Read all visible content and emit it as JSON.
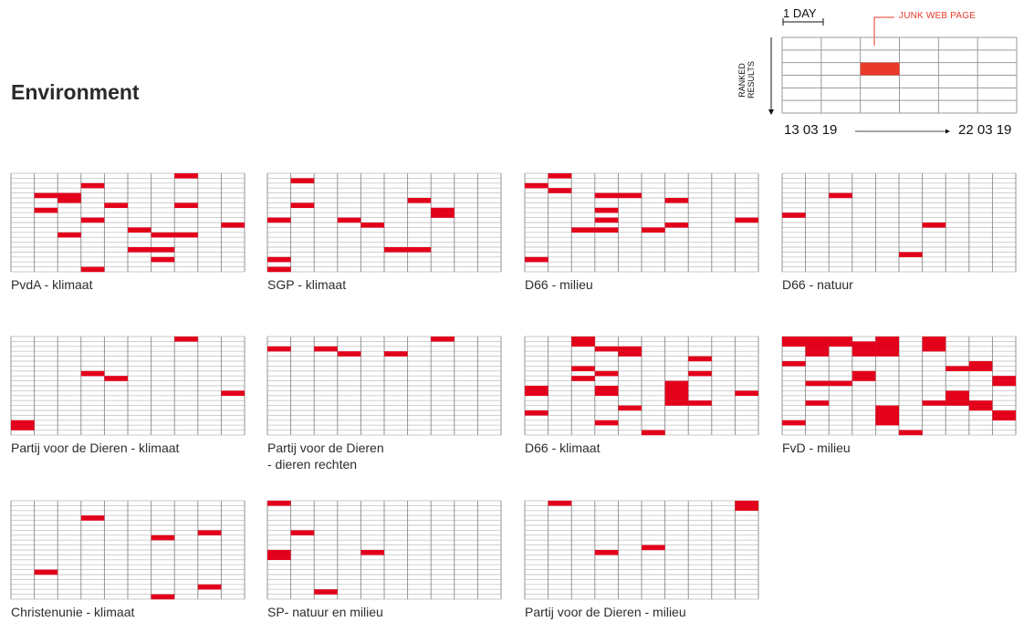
{
  "page": {
    "title": "Environment"
  },
  "legend": {
    "day_label": "1 DAY",
    "junk_label": "JUNK WEB PAGE",
    "axis_label": "RANKED RESULTS",
    "start_date": "13 03 19",
    "end_date": "22 03 19",
    "colors": {
      "junk": "#e8392a",
      "grid": "#9a9a9a"
    }
  },
  "colors": {
    "junk": "#e3001b",
    "grid_line": "#c9c9c9",
    "grid_border": "#666666"
  },
  "chart_data": [
    {
      "type": "heatmap",
      "title": "PvdA - klimaat",
      "days": 10,
      "ranks": 20,
      "dates": [
        "13 03 19",
        "22 03 19"
      ],
      "junk": [
        [
          7,
          0
        ],
        [
          3,
          2
        ],
        [
          1,
          4
        ],
        [
          2,
          4
        ],
        [
          7,
          6
        ],
        [
          2,
          5
        ],
        [
          4,
          6
        ],
        [
          1,
          7
        ],
        [
          3,
          9
        ],
        [
          9,
          10
        ],
        [
          5,
          11
        ],
        [
          6,
          12
        ],
        [
          7,
          12
        ],
        [
          2,
          12
        ],
        [
          6,
          15
        ],
        [
          5,
          15
        ],
        [
          6,
          17
        ],
        [
          3,
          19
        ]
      ]
    },
    {
      "type": "heatmap",
      "title": "SGP - klimaat",
      "days": 10,
      "ranks": 20,
      "dates": [
        "13 03 19",
        "22 03 19"
      ],
      "junk": [
        [
          1,
          1
        ],
        [
          1,
          6
        ],
        [
          6,
          5
        ],
        [
          7,
          7
        ],
        [
          7,
          8
        ],
        [
          0,
          9
        ],
        [
          3,
          9
        ],
        [
          4,
          10
        ],
        [
          5,
          15
        ],
        [
          6,
          15
        ],
        [
          0,
          17
        ],
        [
          0,
          19
        ]
      ]
    },
    {
      "type": "heatmap",
      "title": "D66 - milieu",
      "days": 10,
      "ranks": 20,
      "dates": [
        "13 03 19",
        "22 03 19"
      ],
      "junk": [
        [
          1,
          0
        ],
        [
          0,
          2
        ],
        [
          1,
          3
        ],
        [
          3,
          4
        ],
        [
          4,
          4
        ],
        [
          6,
          5
        ],
        [
          3,
          7
        ],
        [
          3,
          9
        ],
        [
          2,
          11
        ],
        [
          3,
          11
        ],
        [
          5,
          11
        ],
        [
          6,
          10
        ],
        [
          9,
          9
        ],
        [
          0,
          17
        ]
      ]
    },
    {
      "type": "heatmap",
      "title": "D66 - natuur",
      "days": 10,
      "ranks": 20,
      "dates": [
        "13 03 19",
        "22 03 19"
      ],
      "junk": [
        [
          2,
          4
        ],
        [
          0,
          8
        ],
        [
          6,
          10
        ],
        [
          5,
          16
        ]
      ]
    },
    {
      "type": "heatmap",
      "title": "Partij voor de Dieren - klimaat",
      "days": 10,
      "ranks": 20,
      "dates": [
        "13 03 19",
        "22 03 19"
      ],
      "junk": [
        [
          7,
          0
        ],
        [
          3,
          7
        ],
        [
          4,
          8
        ],
        [
          9,
          11
        ],
        [
          0,
          17
        ],
        [
          0,
          18
        ]
      ]
    },
    {
      "type": "heatmap",
      "title": "Partij voor de Dieren\n- dieren rechten",
      "days": 10,
      "ranks": 20,
      "dates": [
        "13 03 19",
        "22 03 19"
      ],
      "junk": [
        [
          7,
          0
        ],
        [
          0,
          2
        ],
        [
          2,
          2
        ],
        [
          3,
          3
        ],
        [
          5,
          3
        ]
      ]
    },
    {
      "type": "heatmap",
      "title": "D66 - klimaat",
      "days": 10,
      "ranks": 20,
      "dates": [
        "13 03 19",
        "22 03 19"
      ],
      "junk": [
        [
          2,
          0
        ],
        [
          2,
          1
        ],
        [
          3,
          2
        ],
        [
          4,
          2
        ],
        [
          4,
          3
        ],
        [
          7,
          4
        ],
        [
          2,
          6
        ],
        [
          3,
          7
        ],
        [
          7,
          7
        ],
        [
          2,
          8
        ],
        [
          6,
          9
        ],
        [
          0,
          10
        ],
        [
          0,
          11
        ],
        [
          3,
          10
        ],
        [
          3,
          11
        ],
        [
          9,
          11
        ],
        [
          6,
          10
        ],
        [
          6,
          11
        ],
        [
          6,
          12
        ],
        [
          6,
          13
        ],
        [
          7,
          13
        ],
        [
          4,
          14
        ],
        [
          0,
          15
        ],
        [
          3,
          17
        ],
        [
          5,
          19
        ]
      ]
    },
    {
      "type": "heatmap",
      "title": "FvD - milieu",
      "days": 10,
      "ranks": 20,
      "dates": [
        "13 03 19",
        "22 03 19"
      ],
      "junk": [
        [
          0,
          0
        ],
        [
          0,
          1
        ],
        [
          1,
          0
        ],
        [
          1,
          1
        ],
        [
          1,
          2
        ],
        [
          1,
          3
        ],
        [
          2,
          0
        ],
        [
          2,
          1
        ],
        [
          3,
          1
        ],
        [
          3,
          2
        ],
        [
          3,
          3
        ],
        [
          4,
          0
        ],
        [
          4,
          1
        ],
        [
          4,
          2
        ],
        [
          4,
          3
        ],
        [
          6,
          0
        ],
        [
          6,
          1
        ],
        [
          6,
          2
        ],
        [
          0,
          5
        ],
        [
          8,
          5
        ],
        [
          8,
          6
        ],
        [
          3,
          7
        ],
        [
          3,
          8
        ],
        [
          7,
          6
        ],
        [
          9,
          8
        ],
        [
          9,
          9
        ],
        [
          1,
          9
        ],
        [
          2,
          9
        ],
        [
          1,
          13
        ],
        [
          6,
          13
        ],
        [
          7,
          11
        ],
        [
          7,
          12
        ],
        [
          7,
          13
        ],
        [
          8,
          13
        ],
        [
          8,
          14
        ],
        [
          4,
          14
        ],
        [
          4,
          15
        ],
        [
          4,
          16
        ],
        [
          4,
          17
        ],
        [
          9,
          15
        ],
        [
          9,
          16
        ],
        [
          0,
          17
        ],
        [
          5,
          19
        ]
      ]
    },
    {
      "type": "heatmap",
      "title": "Christenunie - klimaat",
      "days": 10,
      "ranks": 20,
      "dates": [
        "13 03 19",
        "22 03 19"
      ],
      "junk": [
        [
          3,
          3
        ],
        [
          8,
          6
        ],
        [
          6,
          7
        ],
        [
          1,
          14
        ],
        [
          8,
          17
        ],
        [
          6,
          19
        ]
      ]
    },
    {
      "type": "heatmap",
      "title": "SP-  natuur en milieu",
      "days": 10,
      "ranks": 20,
      "dates": [
        "13 03 19",
        "22 03 19"
      ],
      "junk": [
        [
          0,
          0
        ],
        [
          1,
          6
        ],
        [
          0,
          10
        ],
        [
          0,
          11
        ],
        [
          4,
          10
        ],
        [
          2,
          18
        ]
      ]
    },
    {
      "type": "heatmap",
      "title": "Partij voor de Dieren - milieu",
      "days": 10,
      "ranks": 20,
      "dates": [
        "13 03 19",
        "22 03 19"
      ],
      "junk": [
        [
          1,
          0
        ],
        [
          9,
          0
        ],
        [
          9,
          1
        ],
        [
          3,
          10
        ],
        [
          5,
          9
        ]
      ]
    }
  ]
}
